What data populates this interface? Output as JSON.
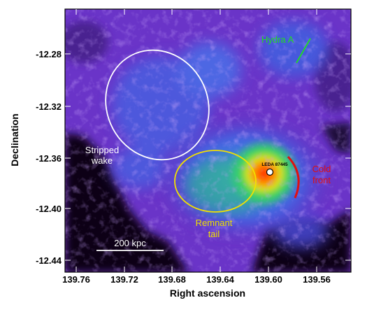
{
  "axes": {
    "xlabel": "Right ascension",
    "ylabel": "Declination",
    "x_ticks": [
      "139.76",
      "139.72",
      "139.68",
      "139.64",
      "139.60",
      "139.56"
    ],
    "y_ticks": [
      "-12.28",
      "-12.32",
      "-12.36",
      "-12.40",
      "-12.44"
    ]
  },
  "annotations": {
    "hydra": "Hydra A",
    "stripped_line1": "Stripped",
    "stripped_line2": "wake",
    "remnant_line1": "Remnant",
    "remnant_line2": "tail",
    "cold_line1": "Cold",
    "cold_line2": "front",
    "galaxy": "LEDA 87445",
    "scale": "200 kpc"
  },
  "colors": {
    "hydra": "#22dd22",
    "stripped": "#ffffff",
    "remnant": "#f2e000",
    "cold_front": "#e01010",
    "scale_bar": "#ffffff"
  },
  "image_description_colormap": [
    "#000000",
    "#3a1a7a",
    "#5a2fc0",
    "#7a3fe0",
    "#3c6ff0",
    "#48c8e0",
    "#2fd07a",
    "#c8e83a",
    "#ffb000",
    "#ff3000"
  ]
}
